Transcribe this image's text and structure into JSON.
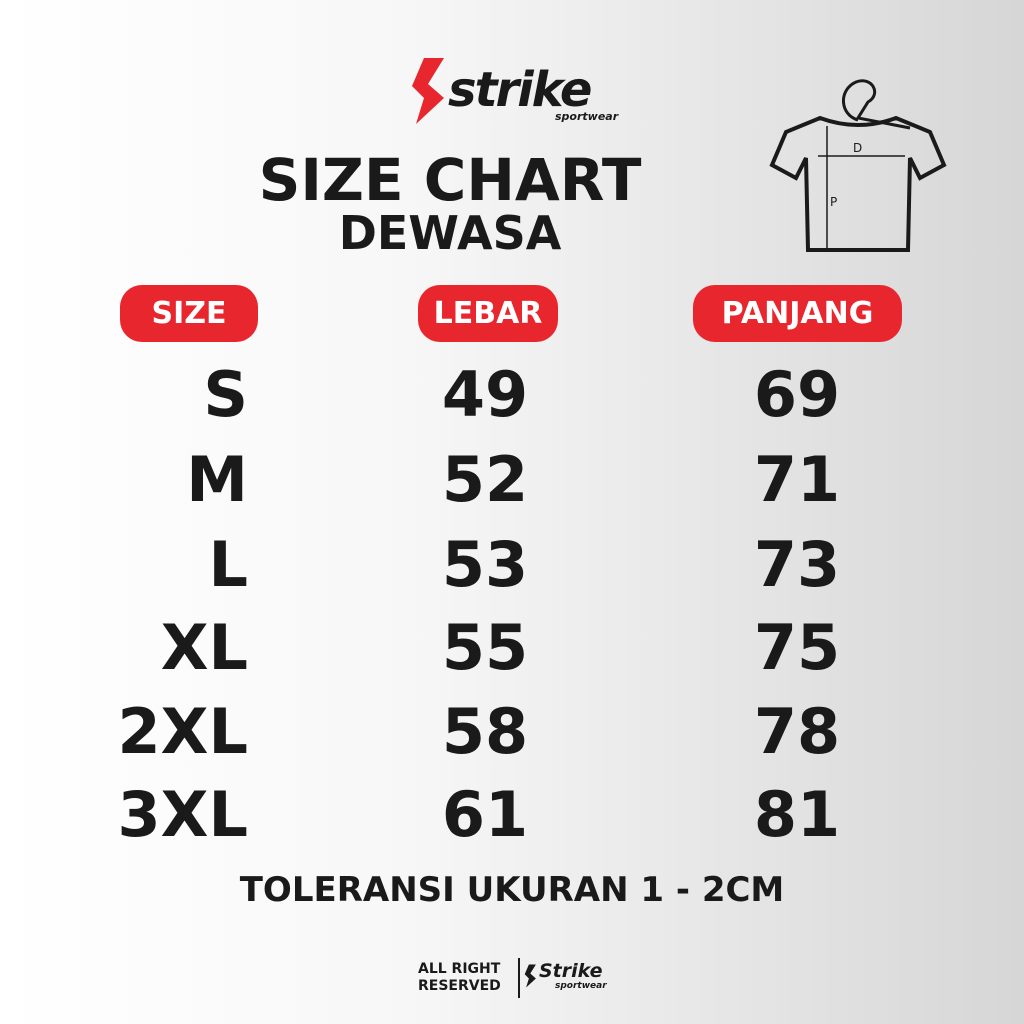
{
  "logo": {
    "name": "strike",
    "tagline": "sportwear"
  },
  "title": "SIZE CHART",
  "subtitle": "DEWASA",
  "diagram": {
    "width_label": "D",
    "length_label": "P"
  },
  "table": {
    "headers": [
      "SIZE",
      "LEBAR",
      "PANJANG"
    ],
    "rows": [
      [
        "S",
        "49",
        "69"
      ],
      [
        "M",
        "52",
        "71"
      ],
      [
        "L",
        "53",
        "73"
      ],
      [
        "XL",
        "55",
        "75"
      ],
      [
        "2XL",
        "58",
        "78"
      ],
      [
        "3XL",
        "61",
        "81"
      ]
    ]
  },
  "note": "TOLERANSI UKURAN 1 - 2CM",
  "footer": {
    "rights": [
      "ALL RIGHT",
      "RESERVED"
    ],
    "brand": "Strike",
    "tagline": "sportwear"
  }
}
